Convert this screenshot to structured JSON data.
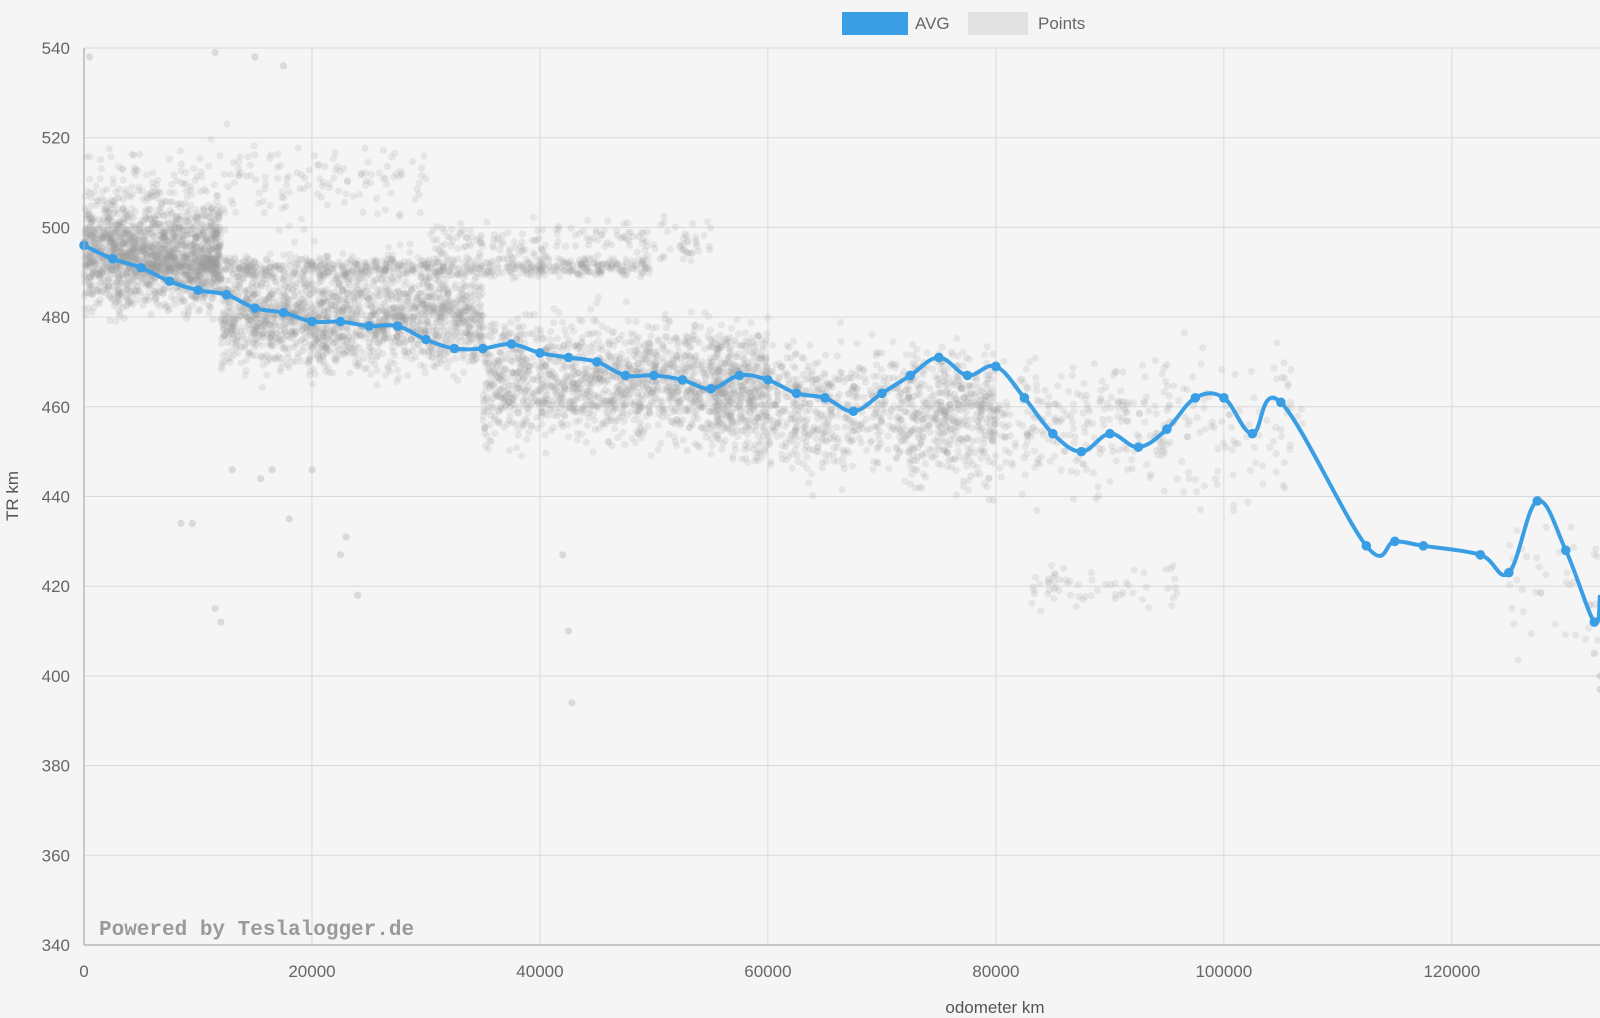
{
  "chart_data": {
    "type": "line",
    "xlabel": "odometer km",
    "ylabel": "TR km",
    "xlim": [
      0,
      133000
    ],
    "ylim": [
      340,
      540
    ],
    "x_ticks": [
      "0",
      "20000",
      "40000",
      "60000",
      "80000",
      "100000",
      "120000"
    ],
    "y_ticks": [
      "340",
      "360",
      "380",
      "400",
      "420",
      "440",
      "460",
      "480",
      "500",
      "520",
      "540"
    ],
    "grid": true,
    "legend_position": "top-center",
    "watermark": "Powered by Teslalogger.de",
    "series": [
      {
        "name": "AVG",
        "kind": "line",
        "color": "#3a9ee4",
        "points": [
          [
            0,
            496
          ],
          [
            2500,
            493
          ],
          [
            5000,
            491
          ],
          [
            7500,
            488
          ],
          [
            10000,
            486
          ],
          [
            12500,
            485
          ],
          [
            15000,
            482
          ],
          [
            17500,
            481
          ],
          [
            20000,
            479
          ],
          [
            22500,
            479
          ],
          [
            25000,
            478
          ],
          [
            27500,
            478
          ],
          [
            30000,
            475
          ],
          [
            32500,
            473
          ],
          [
            35000,
            473
          ],
          [
            37500,
            474
          ],
          [
            40000,
            472
          ],
          [
            42500,
            471
          ],
          [
            45000,
            470
          ],
          [
            47500,
            467
          ],
          [
            50000,
            467
          ],
          [
            52500,
            466
          ],
          [
            55000,
            464
          ],
          [
            57500,
            467
          ],
          [
            60000,
            466
          ],
          [
            62500,
            463
          ],
          [
            65000,
            462
          ],
          [
            67500,
            459
          ],
          [
            70000,
            463
          ],
          [
            72500,
            467
          ],
          [
            75000,
            471
          ],
          [
            77500,
            467
          ],
          [
            80000,
            469
          ],
          [
            82500,
            462
          ],
          [
            85000,
            454
          ],
          [
            87500,
            450
          ],
          [
            90000,
            454
          ],
          [
            92500,
            451
          ],
          [
            95000,
            455
          ],
          [
            97500,
            462
          ],
          [
            100000,
            462
          ],
          [
            102500,
            454
          ],
          [
            105000,
            461
          ],
          [
            112500,
            429
          ],
          [
            115000,
            430
          ],
          [
            117500,
            429
          ],
          [
            122500,
            427
          ],
          [
            125000,
            423
          ],
          [
            127500,
            439
          ],
          [
            130000,
            428
          ],
          [
            132500,
            412
          ],
          [
            133000,
            418
          ]
        ]
      },
      {
        "name": "Points",
        "kind": "scatter",
        "color": "#9a9a9a",
        "clusters": [
          {
            "x": [
              0,
              12000
            ],
            "y_center": 494,
            "spread": 14,
            "count": 1600
          },
          {
            "x": [
              12000,
              35000
            ],
            "y_center": 480,
            "spread": 14,
            "count": 1700
          },
          {
            "x": [
              5000,
              50000
            ],
            "y_center": 491,
            "spread": 3,
            "count": 700
          },
          {
            "x": [
              35000,
              60000
            ],
            "y_center": 466,
            "spread": 16,
            "count": 1500
          },
          {
            "x": [
              55000,
              80000
            ],
            "y_center": 460,
            "spread": 17,
            "count": 1000
          },
          {
            "x": [
              72000,
              95000
            ],
            "y_center": 455,
            "spread": 17,
            "count": 380
          },
          {
            "x": [
              95000,
              107000
            ],
            "y_center": 455,
            "spread": 20,
            "count": 110
          },
          {
            "x": [
              0,
              30000
            ],
            "y_center": 510,
            "spread": 12,
            "count": 220
          },
          {
            "x": [
              30000,
              55000
            ],
            "y_center": 497,
            "spread": 6,
            "count": 180
          },
          {
            "x": [
              83000,
              96000
            ],
            "y_center": 420,
            "spread": 8,
            "count": 60
          },
          {
            "x": [
              125000,
              133000
            ],
            "y_center": 420,
            "spread": 17,
            "count": 40
          }
        ],
        "outliers": [
          [
            500,
            538
          ],
          [
            11500,
            539
          ],
          [
            15000,
            538
          ],
          [
            17500,
            536
          ],
          [
            11500,
            415
          ],
          [
            12000,
            412
          ],
          [
            22500,
            427
          ],
          [
            23000,
            431
          ],
          [
            24000,
            418
          ],
          [
            42000,
            427
          ],
          [
            42500,
            410
          ],
          [
            42800,
            394
          ],
          [
            8500,
            434
          ],
          [
            9500,
            434
          ],
          [
            132500,
            405
          ],
          [
            133000,
            400
          ],
          [
            133000,
            397
          ],
          [
            13000,
            446
          ],
          [
            15500,
            444
          ],
          [
            16500,
            446
          ],
          [
            20000,
            446
          ],
          [
            18000,
            435
          ]
        ]
      }
    ]
  },
  "colors": {
    "background": "#f5f5f5",
    "grid": "#d9d9d9",
    "axis": "#aaaaaa",
    "avg_line": "#3a9ee4",
    "points": "#9a9a9a"
  }
}
